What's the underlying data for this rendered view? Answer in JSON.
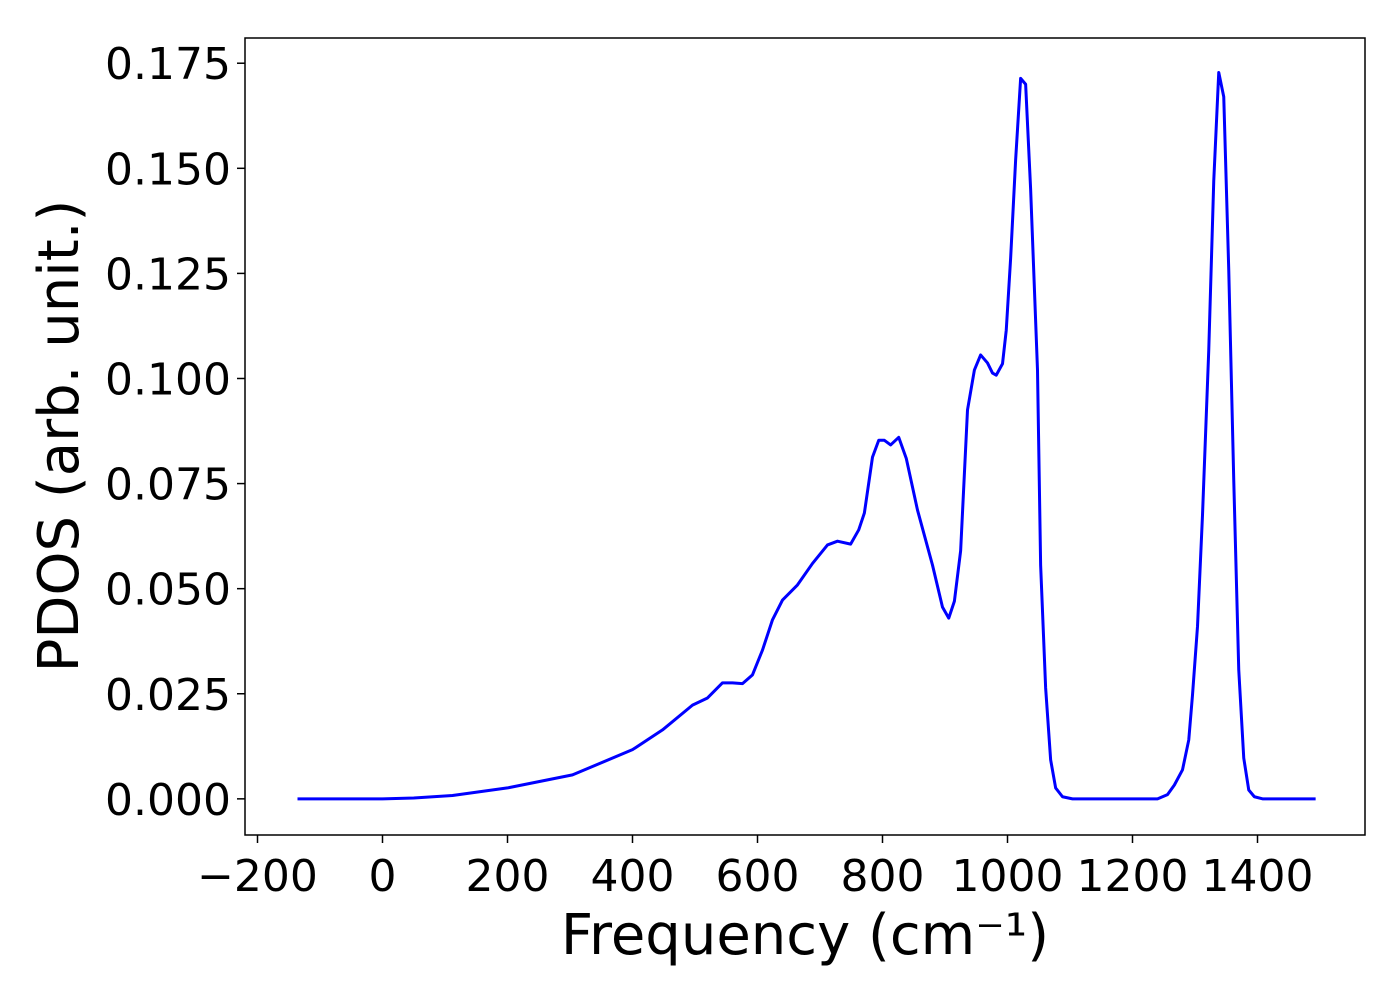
{
  "chart_data": {
    "type": "line",
    "xlabel": "Frequency (cm⁻¹)",
    "ylabel": "PDOS (arb. unit.)",
    "xlim": [
      -220,
      1572
    ],
    "ylim": [
      -0.0086,
      0.181
    ],
    "xticks": [
      {
        "value": -200,
        "label": "−200"
      },
      0,
      200,
      400,
      600,
      800,
      1000,
      1200,
      1400
    ],
    "yticks": [
      {
        "value": 0,
        "label": "0.000"
      },
      {
        "value": 0.025,
        "label": "0.025"
      },
      {
        "value": 0.05,
        "label": "0.050"
      },
      {
        "value": 0.075,
        "label": "0.075"
      },
      {
        "value": 0.1,
        "label": "0.100"
      },
      {
        "value": 0.125,
        "label": "0.125"
      },
      {
        "value": 0.15,
        "label": "0.150"
      },
      {
        "value": 0.175,
        "label": "0.175"
      }
    ],
    "x": [
      -136,
      -50,
      0,
      50,
      112,
      200,
      304,
      400,
      448,
      496,
      520,
      544,
      560,
      576,
      592,
      608,
      624,
      640,
      664,
      688,
      712,
      728,
      749,
      762,
      771,
      784,
      794,
      803,
      813,
      826,
      838,
      856,
      880,
      896,
      906,
      915,
      925,
      936,
      947,
      957,
      968,
      976,
      982,
      992,
      998,
      1005,
      1013,
      1021,
      1029,
      1037,
      1048,
      1053,
      1061,
      1069,
      1077,
      1088,
      1104,
      1150,
      1200,
      1240,
      1256,
      1267,
      1280,
      1290,
      1296,
      1304,
      1312,
      1322,
      1330,
      1338,
      1346,
      1354,
      1362,
      1370,
      1378,
      1386,
      1395,
      1408,
      1450,
      1493
    ],
    "series": [
      {
        "name": "PDOS",
        "color": "#0000ff",
        "values": [
          0,
          0,
          0,
          0.0002,
          0.0008,
          0.0026,
          0.0057,
          0.0117,
          0.0164,
          0.0223,
          0.024,
          0.0276,
          0.0276,
          0.0274,
          0.0295,
          0.0354,
          0.0426,
          0.0473,
          0.0509,
          0.056,
          0.0604,
          0.0613,
          0.0606,
          0.064,
          0.068,
          0.0813,
          0.0853,
          0.0853,
          0.0842,
          0.086,
          0.081,
          0.0687,
          0.0556,
          0.0456,
          0.043,
          0.047,
          0.059,
          0.0925,
          0.102,
          0.1056,
          0.1037,
          0.1013,
          0.1008,
          0.1035,
          0.1115,
          0.1286,
          0.152,
          0.1714,
          0.17,
          0.145,
          0.102,
          0.0556,
          0.0264,
          0.0093,
          0.0026,
          0.0005,
          0,
          0,
          0,
          0,
          0.001,
          0.0033,
          0.0069,
          0.014,
          0.0247,
          0.041,
          0.0675,
          0.1067,
          0.147,
          0.1728,
          0.167,
          0.1258,
          0.0758,
          0.0307,
          0.0097,
          0.0021,
          0.0005,
          0,
          0,
          0
        ]
      }
    ]
  }
}
